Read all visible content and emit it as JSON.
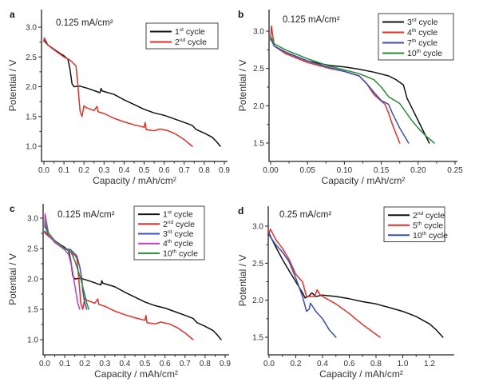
{
  "colors": {
    "black": "#111111",
    "red": "#e2302b",
    "blue": "#3a4fb0",
    "magenta": "#c23fc0",
    "green": "#2a8a3a"
  },
  "chart_data": [
    {
      "panel": "a",
      "type": "line",
      "annotation": "0.125 mA/cm²",
      "xlabel": "Capacity / mAh/cm²",
      "ylabel": "Potential / V",
      "xlim": [
        -0.01,
        0.92
      ],
      "ylim": [
        0.78,
        3.25
      ],
      "xticks": [
        0.0,
        0.1,
        0.2,
        0.3,
        0.4,
        0.5,
        0.6,
        0.7,
        0.8,
        0.9
      ],
      "xticklabels": [
        "0.0",
        "0.1",
        "0.2",
        "0.3",
        "0.4",
        "0.5",
        "0.6",
        "0.7",
        "0.8",
        "0.9"
      ],
      "yticks": [
        1.0,
        1.5,
        2.0,
        2.5,
        3.0
      ],
      "yticklabels": [
        "1.0",
        "1.5",
        "2.0",
        "2.5",
        "3.0"
      ],
      "legend": "top-right",
      "series": [
        {
          "name": "1st cycle",
          "sup": "st",
          "num": "1",
          "color": "black",
          "x": [
            0.0,
            0.02,
            0.05,
            0.08,
            0.1,
            0.12,
            0.13,
            0.14,
            0.15,
            0.18,
            0.22,
            0.28,
            0.285,
            0.29,
            0.3,
            0.35,
            0.4,
            0.45,
            0.5,
            0.55,
            0.6,
            0.65,
            0.7,
            0.74,
            0.76,
            0.8,
            0.84,
            0.86,
            0.88
          ],
          "y": [
            2.78,
            2.7,
            2.63,
            2.56,
            2.52,
            2.46,
            2.3,
            2.05,
            2.0,
            2.01,
            1.97,
            1.9,
            1.97,
            1.93,
            1.92,
            1.87,
            1.78,
            1.7,
            1.62,
            1.56,
            1.52,
            1.46,
            1.4,
            1.35,
            1.28,
            1.22,
            1.15,
            1.08,
            1.0
          ]
        },
        {
          "name": "2nd cycle",
          "sup": "nd",
          "num": "2",
          "color": "red",
          "x": [
            0.0,
            0.002,
            0.02,
            0.05,
            0.1,
            0.13,
            0.16,
            0.17,
            0.18,
            0.19,
            0.2,
            0.21,
            0.25,
            0.265,
            0.27,
            0.3,
            0.35,
            0.4,
            0.45,
            0.5,
            0.505,
            0.51,
            0.55,
            0.58,
            0.62,
            0.66,
            0.7,
            0.74
          ],
          "y": [
            2.76,
            2.82,
            2.7,
            2.62,
            2.5,
            2.45,
            2.35,
            2.0,
            1.6,
            1.5,
            1.68,
            1.65,
            1.6,
            1.67,
            1.58,
            1.55,
            1.47,
            1.41,
            1.36,
            1.32,
            1.4,
            1.28,
            1.26,
            1.29,
            1.26,
            1.2,
            1.11,
            1.0
          ]
        }
      ]
    },
    {
      "panel": "b",
      "type": "line",
      "annotation": "0.125 mA/cm²",
      "xlabel": "Capacity / mAh/cm²",
      "ylabel": "Potential / V",
      "xlim": [
        -0.001,
        0.25
      ],
      "ylim": [
        1.25,
        3.25
      ],
      "xticks": [
        0.0,
        0.05,
        0.1,
        0.15,
        0.2,
        0.25
      ],
      "xticklabels": [
        "0.00",
        "0.05",
        "0.10",
        "0.15",
        "0.20",
        "0.25"
      ],
      "yticks": [
        1.5,
        2.0,
        2.5,
        3.0
      ],
      "yticklabels": [
        "1.5",
        "2.0",
        "2.5",
        "3.0"
      ],
      "legend": "top-right",
      "series": [
        {
          "name": "3rd cycle",
          "sup": "rd",
          "num": "3",
          "color": "black",
          "x": [
            0.0,
            0.005,
            0.02,
            0.05,
            0.08,
            0.1,
            0.12,
            0.14,
            0.16,
            0.17,
            0.18,
            0.185,
            0.19,
            0.2,
            0.215
          ],
          "y": [
            2.92,
            2.8,
            2.72,
            2.6,
            2.54,
            2.52,
            2.49,
            2.45,
            2.4,
            2.35,
            2.28,
            2.1,
            2.0,
            1.8,
            1.5
          ]
        },
        {
          "name": "4th cycle",
          "sup": "th",
          "num": "4",
          "color": "red",
          "x": [
            0.0,
            0.001,
            0.005,
            0.02,
            0.05,
            0.08,
            0.1,
            0.12,
            0.13,
            0.14,
            0.155,
            0.16,
            0.165,
            0.175
          ],
          "y": [
            2.88,
            3.07,
            2.8,
            2.7,
            2.58,
            2.5,
            2.46,
            2.4,
            2.3,
            2.15,
            2.02,
            1.9,
            1.75,
            1.5
          ]
        },
        {
          "name": "7th cycle",
          "sup": "th",
          "num": "7",
          "color": "blue",
          "x": [
            0.0,
            0.005,
            0.02,
            0.05,
            0.08,
            0.1,
            0.12,
            0.13,
            0.14,
            0.15,
            0.16,
            0.165,
            0.175,
            0.187
          ],
          "y": [
            2.9,
            2.8,
            2.72,
            2.6,
            2.51,
            2.46,
            2.4,
            2.3,
            2.18,
            2.07,
            2.02,
            1.9,
            1.7,
            1.5
          ]
        },
        {
          "name": "10th cycle",
          "sup": "th",
          "num": "10",
          "color": "green",
          "x": [
            0.0,
            0.005,
            0.02,
            0.05,
            0.08,
            0.1,
            0.12,
            0.14,
            0.15,
            0.16,
            0.175,
            0.19,
            0.2,
            0.21,
            0.222
          ],
          "y": [
            2.93,
            2.83,
            2.75,
            2.63,
            2.53,
            2.48,
            2.43,
            2.35,
            2.25,
            2.12,
            2.03,
            1.82,
            1.7,
            1.6,
            1.5
          ]
        }
      ]
    },
    {
      "panel": "c",
      "type": "line",
      "annotation": "0.125 mA/cm²",
      "xlabel": "Capacity / mAh/cm²",
      "ylabel": "Potential / V",
      "xlim": [
        -0.01,
        0.92
      ],
      "ylim": [
        0.78,
        3.25
      ],
      "xticks": [
        0.0,
        0.1,
        0.2,
        0.3,
        0.4,
        0.5,
        0.6,
        0.7,
        0.8,
        0.9
      ],
      "xticklabels": [
        "0.0",
        "0.1",
        "0.2",
        "0.3",
        "0.4",
        "0.5",
        "0.6",
        "0.7",
        "0.8",
        "0.9"
      ],
      "yticks": [
        1.0,
        1.5,
        2.0,
        2.5,
        3.0
      ],
      "yticklabels": [
        "1.0",
        "1.5",
        "2.0",
        "2.5",
        "3.0"
      ],
      "legend": "top-right",
      "series": [
        {
          "name": "1st cycle",
          "sup": "st",
          "num": "1",
          "color": "black",
          "x": [
            0.0,
            0.02,
            0.05,
            0.08,
            0.1,
            0.12,
            0.13,
            0.14,
            0.15,
            0.18,
            0.22,
            0.28,
            0.285,
            0.29,
            0.3,
            0.35,
            0.4,
            0.45,
            0.5,
            0.55,
            0.6,
            0.65,
            0.7,
            0.74,
            0.76,
            0.8,
            0.84,
            0.86,
            0.88
          ],
          "y": [
            2.78,
            2.7,
            2.63,
            2.56,
            2.52,
            2.46,
            2.3,
            2.05,
            2.0,
            2.01,
            1.97,
            1.9,
            1.97,
            1.93,
            1.92,
            1.87,
            1.78,
            1.7,
            1.62,
            1.56,
            1.52,
            1.46,
            1.4,
            1.35,
            1.28,
            1.22,
            1.15,
            1.08,
            1.0
          ]
        },
        {
          "name": "2nd cycle",
          "sup": "nd",
          "num": "2",
          "color": "red",
          "x": [
            0.0,
            0.02,
            0.05,
            0.1,
            0.13,
            0.16,
            0.17,
            0.18,
            0.19,
            0.2,
            0.21,
            0.25,
            0.265,
            0.27,
            0.3,
            0.35,
            0.4,
            0.45,
            0.5,
            0.505,
            0.51,
            0.55,
            0.58,
            0.62,
            0.66,
            0.7,
            0.74
          ],
          "y": [
            2.76,
            2.7,
            2.62,
            2.5,
            2.45,
            2.35,
            2.0,
            1.6,
            1.5,
            1.68,
            1.65,
            1.6,
            1.67,
            1.58,
            1.55,
            1.47,
            1.41,
            1.36,
            1.32,
            1.4,
            1.28,
            1.26,
            1.29,
            1.26,
            1.2,
            1.11,
            1.0
          ]
        },
        {
          "name": "3rd cycle",
          "sup": "rd",
          "num": "3",
          "color": "blue",
          "x": [
            0.0,
            0.02,
            0.05,
            0.1,
            0.13,
            0.16,
            0.175,
            0.185,
            0.19,
            0.2,
            0.21
          ],
          "y": [
            2.88,
            2.72,
            2.6,
            2.5,
            2.48,
            2.38,
            2.2,
            2.0,
            1.8,
            1.6,
            1.5
          ]
        },
        {
          "name": "4th cycle",
          "sup": "th",
          "num": "4",
          "color": "magenta",
          "x": [
            0.0,
            0.002,
            0.02,
            0.05,
            0.1,
            0.12,
            0.135,
            0.145,
            0.155,
            0.165,
            0.175
          ],
          "y": [
            2.85,
            3.07,
            2.72,
            2.6,
            2.48,
            2.4,
            2.2,
            2.0,
            1.8,
            1.6,
            1.5
          ]
        },
        {
          "name": "10th cycle",
          "sup": "th",
          "num": "10",
          "color": "green",
          "x": [
            0.0,
            0.02,
            0.05,
            0.1,
            0.13,
            0.15,
            0.17,
            0.18,
            0.195,
            0.21,
            0.22
          ],
          "y": [
            2.95,
            2.75,
            2.63,
            2.5,
            2.45,
            2.3,
            2.1,
            2.0,
            1.8,
            1.6,
            1.5
          ]
        }
      ]
    },
    {
      "panel": "d",
      "type": "line",
      "annotation": "0.25 mA/cm²",
      "xlabel": "Capacity / mAh/cm²",
      "ylabel": "Potential / V",
      "xlim": [
        -0.01,
        1.38
      ],
      "ylim": [
        1.28,
        3.1
      ],
      "xticks": [
        0.0,
        0.2,
        0.4,
        0.6,
        0.8,
        1.0,
        1.2
      ],
      "xticklabels": [
        "0.0",
        "0.2",
        "0.4",
        "0.6",
        "0.8",
        "1.0",
        "1.2"
      ],
      "yticks": [
        1.5,
        2.0,
        2.5,
        3.0
      ],
      "yticklabels": [
        "1.5",
        "2.0",
        "2.5",
        "3.0"
      ],
      "legend": "top-right",
      "series": [
        {
          "name": "2nd cycle",
          "sup": "nd",
          "num": "2",
          "color": "black",
          "x": [
            0.0,
            0.05,
            0.1,
            0.15,
            0.2,
            0.25,
            0.27,
            0.3,
            0.32,
            0.35,
            0.4,
            0.5,
            0.6,
            0.7,
            0.8,
            0.9,
            1.0,
            1.1,
            1.2,
            1.25,
            1.3
          ],
          "y": [
            2.9,
            2.72,
            2.55,
            2.4,
            2.25,
            2.1,
            2.03,
            2.06,
            2.1,
            2.05,
            2.07,
            2.05,
            2.02,
            1.98,
            1.95,
            1.9,
            1.85,
            1.78,
            1.68,
            1.6,
            1.5
          ]
        },
        {
          "name": "5th cycle",
          "sup": "th",
          "num": "5",
          "color": "red",
          "x": [
            0.0,
            0.01,
            0.05,
            0.1,
            0.15,
            0.2,
            0.25,
            0.28,
            0.3,
            0.34,
            0.36,
            0.38,
            0.4,
            0.5,
            0.6,
            0.7,
            0.83
          ],
          "y": [
            2.9,
            2.96,
            2.82,
            2.7,
            2.55,
            2.35,
            2.25,
            2.05,
            2.05,
            2.05,
            2.14,
            2.08,
            2.05,
            1.95,
            1.82,
            1.67,
            1.5
          ]
        },
        {
          "name": "10th cycle",
          "sup": "th",
          "num": "10",
          "color": "blue",
          "x": [
            0.0,
            0.05,
            0.1,
            0.15,
            0.2,
            0.25,
            0.28,
            0.3,
            0.31,
            0.35,
            0.4,
            0.45,
            0.5
          ],
          "y": [
            2.88,
            2.75,
            2.65,
            2.52,
            2.3,
            2.05,
            1.85,
            1.88,
            1.96,
            1.85,
            1.75,
            1.6,
            1.5
          ]
        }
      ]
    }
  ]
}
